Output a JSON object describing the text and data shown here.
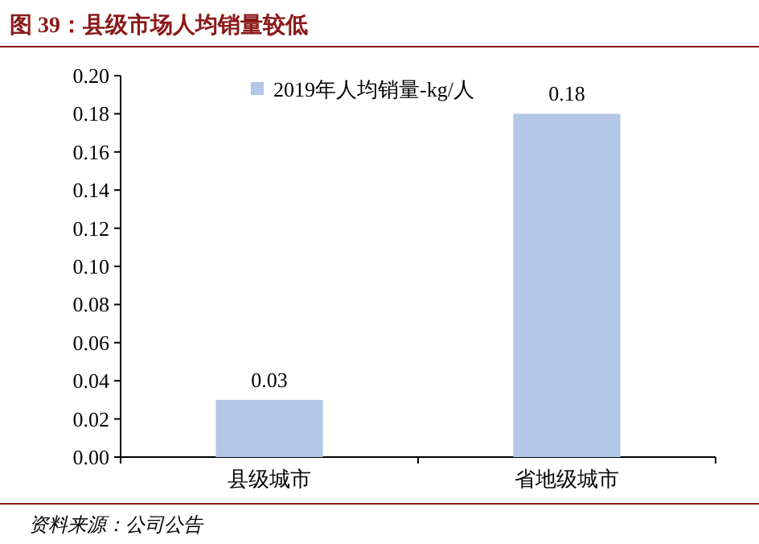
{
  "chart_data": {
    "type": "bar",
    "title": "图 39：县级市场人均销量较低",
    "categories": [
      "县级城市",
      "省地级城市"
    ],
    "series": [
      {
        "name": "2019年人均销量-kg/人",
        "color": "#b4c7e7",
        "values": [
          0.03,
          0.18
        ]
      }
    ],
    "ylim": [
      0,
      0.2
    ],
    "yticks": [
      {
        "value": 0,
        "label": "0.00"
      },
      {
        "value": 0.02,
        "label": "0.02"
      },
      {
        "value": 0.04,
        "label": "0.04"
      },
      {
        "value": 0.06,
        "label": "0.06"
      },
      {
        "value": 0.08,
        "label": "0.08"
      },
      {
        "value": 0.1,
        "label": "0.10"
      },
      {
        "value": 0.12,
        "label": "0.12"
      },
      {
        "value": 0.14,
        "label": "0.14"
      },
      {
        "value": 0.16,
        "label": "0.16"
      },
      {
        "value": 0.18,
        "label": "0.18"
      },
      {
        "value": 0.2,
        "label": "0.20"
      }
    ],
    "data_labels": true,
    "legend": "top",
    "grid": false,
    "annotations": [
      "资料来源：公司公告"
    ]
  }
}
